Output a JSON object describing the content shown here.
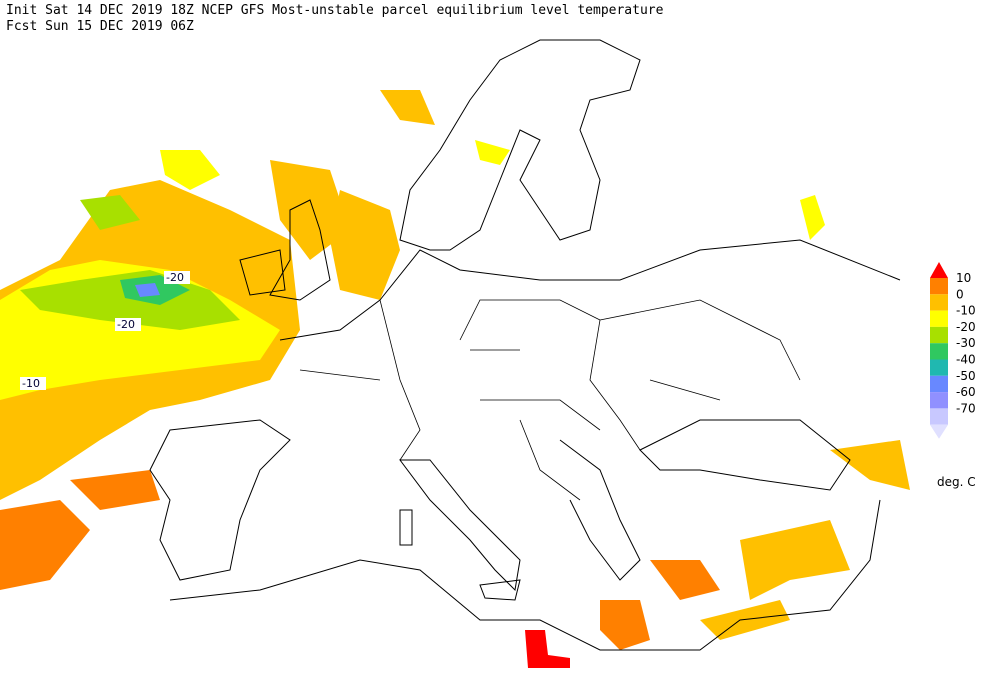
{
  "header": {
    "line1": "Init  Sat 14 DEC 2019 18Z  NCEP GFS Most-unstable parcel equilibrium level temperature",
    "line2": "Fcst Sun 15 DEC 2019 06Z"
  },
  "contour_labels": [
    "-20",
    "-20",
    "-10"
  ],
  "legend": {
    "labels": [
      "10",
      "0",
      "-10",
      "-20",
      "-30",
      "-40",
      "-50",
      "-60",
      "-70"
    ],
    "colors": [
      "#ff0000",
      "#ff8000",
      "#ffc000",
      "#ffff00",
      "#a8e000",
      "#30c860",
      "#20b8b0",
      "#6888ff",
      "#9090ff",
      "#c8c8ff",
      "#e0e0ff"
    ],
    "unit": "deg. C"
  }
}
